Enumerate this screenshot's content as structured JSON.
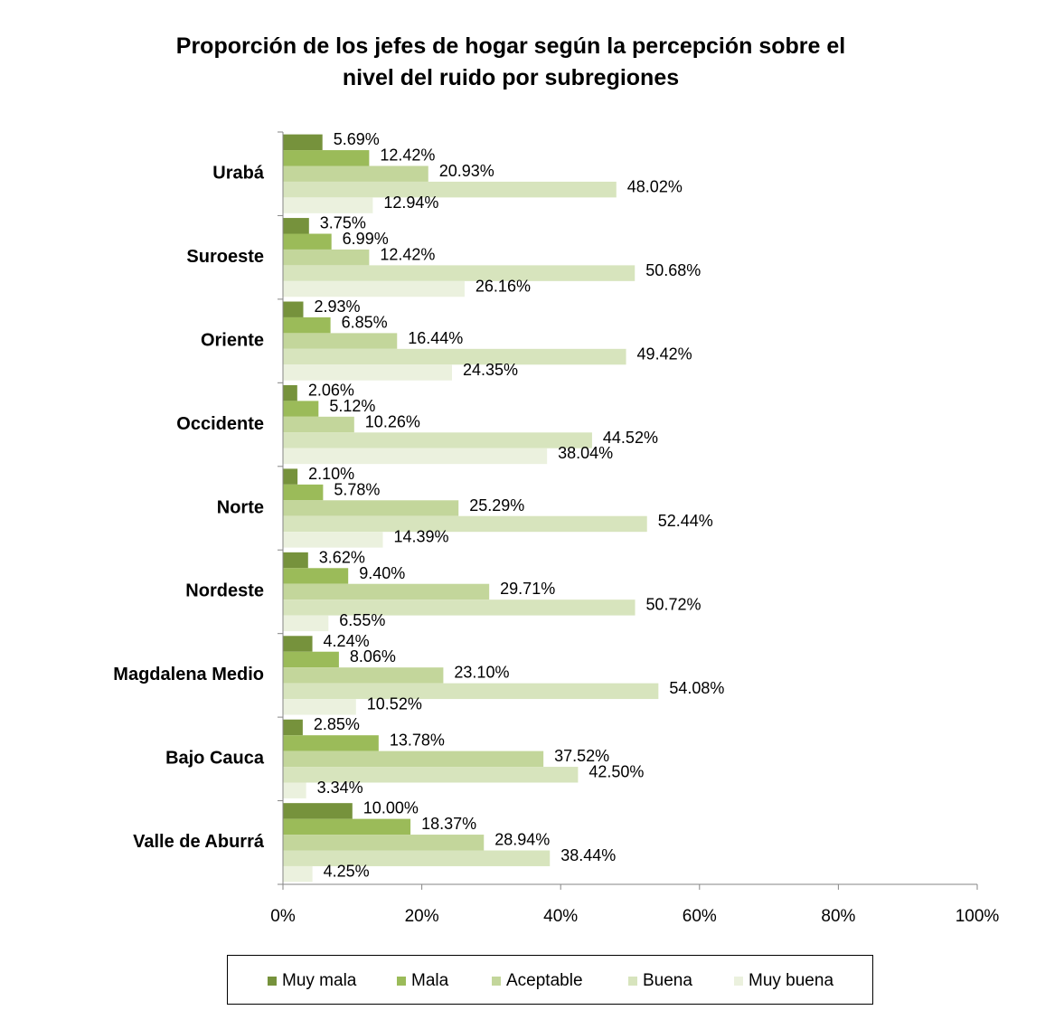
{
  "chart_data": {
    "type": "bar",
    "orientation": "horizontal",
    "title_lines": [
      "Proporción de los jefes de  hogar según la percepción sobre el",
      "nivel del ruido por subregiones"
    ],
    "categories": [
      "Urabá",
      "Suroeste",
      "Oriente",
      "Occidente",
      "Norte",
      "Nordeste",
      "Magdalena Medio",
      "Bajo Cauca",
      "Valle de Aburrá"
    ],
    "series": [
      {
        "name": "Muy mala",
        "color": "#76923c",
        "values": [
          5.69,
          3.75,
          2.93,
          2.06,
          2.1,
          3.62,
          4.24,
          2.85,
          10.0
        ],
        "labels": [
          "5.69%",
          "3.75%",
          "2.93%",
          "2.06%",
          "2.10%",
          "3.62%",
          "4.24%",
          "2.85%",
          "10.00%"
        ]
      },
      {
        "name": "Mala",
        "color": "#9bbb59",
        "values": [
          12.42,
          6.99,
          6.85,
          5.12,
          5.78,
          9.4,
          8.06,
          13.78,
          18.37
        ],
        "labels": [
          "12.42%",
          "6.99%",
          "6.85%",
          "5.12%",
          "5.78%",
          "9.40%",
          "8.06%",
          "13.78%",
          "18.37%"
        ]
      },
      {
        "name": "Aceptable",
        "color": "#c3d69b",
        "values": [
          20.93,
          12.42,
          16.44,
          10.26,
          25.29,
          29.71,
          23.1,
          37.52,
          28.94
        ],
        "labels": [
          "20.93%",
          "12.42%",
          "16.44%",
          "10.26%",
          "25.29%",
          "29.71%",
          "23.10%",
          "37.52%",
          "28.94%"
        ]
      },
      {
        "name": "Buena",
        "color": "#d7e4bd",
        "values": [
          48.02,
          50.68,
          49.42,
          44.52,
          52.44,
          50.72,
          54.08,
          42.5,
          38.44
        ],
        "labels": [
          "48.02%",
          "50.68%",
          "49.42%",
          "44.52%",
          "52.44%",
          "50.72%",
          "54.08%",
          "42.50%",
          "38.44%"
        ]
      },
      {
        "name": "Muy buena",
        "color": "#ebf1de",
        "values": [
          12.94,
          26.16,
          24.35,
          38.04,
          14.39,
          6.55,
          10.52,
          3.34,
          4.25
        ],
        "labels": [
          "12.94%",
          "26.16%",
          "24.35%",
          "38.04%",
          "14.39%",
          "6.55%",
          "10.52%",
          "3.34%",
          "4.25%"
        ]
      }
    ],
    "xlim": [
      0,
      100
    ],
    "x_ticks": [
      0,
      20,
      40,
      60,
      80,
      100
    ],
    "x_tick_labels": [
      "0%",
      "20%",
      "40%",
      "60%",
      "80%",
      "100%"
    ],
    "xlabel": "",
    "ylabel": "",
    "grid": false,
    "legend_position": "bottom"
  }
}
